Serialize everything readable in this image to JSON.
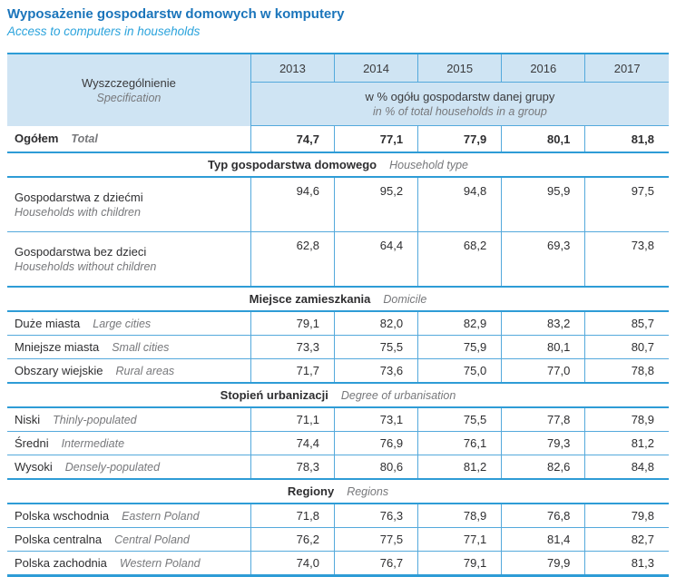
{
  "title": {
    "pl": "Wyposażenie gospodarstw domowych w komputery",
    "en": "Access to computers in households"
  },
  "table": {
    "header": {
      "spec_pl": "Wyszczególnienie",
      "spec_en": "Specification",
      "years": [
        "2013",
        "2014",
        "2015",
        "2016",
        "2017"
      ],
      "unit_pl": "w % ogółu gospodarstw danej grupy",
      "unit_en": "in % of total households in a group"
    },
    "total_row": {
      "label_pl": "Ogółem",
      "label_en": "Total",
      "values": [
        "74,7",
        "77,1",
        "77,9",
        "80,1",
        "81,8"
      ]
    },
    "sections": [
      {
        "header_pl": "Typ gospodarstwa domowego",
        "header_en": "Household type",
        "rows": [
          {
            "pl": "Gospodarstwa z dziećmi",
            "en": "Households with children",
            "two_line": true,
            "values": [
              "94,6",
              "95,2",
              "94,8",
              "95,9",
              "97,5"
            ]
          },
          {
            "pl": "Gospodarstwa bez dzieci",
            "en": "Households without children",
            "two_line": true,
            "values": [
              "62,8",
              "64,4",
              "68,2",
              "69,3",
              "73,8"
            ]
          }
        ]
      },
      {
        "header_pl": "Miejsce zamieszkania",
        "header_en": "Domicile",
        "rows": [
          {
            "pl": "Duże miasta",
            "en": "Large cities",
            "two_line": false,
            "values": [
              "79,1",
              "82,0",
              "82,9",
              "83,2",
              "85,7"
            ]
          },
          {
            "pl": "Mniejsze miasta",
            "en": "Small cities",
            "two_line": false,
            "values": [
              "73,3",
              "75,5",
              "75,9",
              "80,1",
              "80,7"
            ]
          },
          {
            "pl": "Obszary wiejskie",
            "en": "Rural areas",
            "two_line": false,
            "values": [
              "71,7",
              "73,6",
              "75,0",
              "77,0",
              "78,8"
            ]
          }
        ]
      },
      {
        "header_pl": "Stopień urbanizacji",
        "header_en": "Degree of urbanisation",
        "rows": [
          {
            "pl": "Niski",
            "en": "Thinly-populated",
            "two_line": false,
            "values": [
              "71,1",
              "73,1",
              "75,5",
              "77,8",
              "78,9"
            ]
          },
          {
            "pl": "Średni",
            "en": "Intermediate",
            "two_line": false,
            "values": [
              "74,4",
              "76,9",
              "76,1",
              "79,3",
              "81,2"
            ]
          },
          {
            "pl": "Wysoki",
            "en": "Densely-populated",
            "two_line": false,
            "values": [
              "78,3",
              "80,6",
              "81,2",
              "82,6",
              "84,8"
            ]
          }
        ]
      },
      {
        "header_pl": "Regiony",
        "header_en": "Regions",
        "rows": [
          {
            "pl": "Polska wschodnia",
            "en": "Eastern Poland",
            "two_line": false,
            "values": [
              "71,8",
              "76,3",
              "78,9",
              "76,8",
              "79,8"
            ]
          },
          {
            "pl": "Polska centralna",
            "en": "Central Poland",
            "two_line": false,
            "values": [
              "76,2",
              "77,5",
              "77,1",
              "81,4",
              "82,7"
            ]
          },
          {
            "pl": "Polska zachodnia",
            "en": "Western Poland",
            "two_line": false,
            "values": [
              "74,0",
              "76,7",
              "79,1",
              "79,9",
              "81,3"
            ]
          }
        ]
      }
    ]
  },
  "colors": {
    "title_blue": "#1b75bb",
    "subtitle_blue": "#2ba3dc",
    "header_bg": "#cfe4f3",
    "grid_light": "#54a9dc",
    "grid_strong": "#2e9cd6",
    "text_dark": "#2e2e30",
    "text_gray": "#77787b"
  },
  "chart_data": {
    "type": "table",
    "title": "Wyposażenie gospodarstw domowych w komputery (Access to computers in households)",
    "unit": "w % ogółu gospodarstw danej grupy / in % of total households in a group",
    "columns": [
      2013,
      2014,
      2015,
      2016,
      2017
    ],
    "rows": [
      {
        "group": null,
        "label": "Ogółem / Total",
        "values": [
          74.7,
          77.1,
          77.9,
          80.1,
          81.8
        ]
      },
      {
        "group": "Typ gospodarstwa domowego / Household type",
        "label": "Gospodarstwa z dziećmi / Households with children",
        "values": [
          94.6,
          95.2,
          94.8,
          95.9,
          97.5
        ]
      },
      {
        "group": "Typ gospodarstwa domowego / Household type",
        "label": "Gospodarstwa bez dzieci / Households without children",
        "values": [
          62.8,
          64.4,
          68.2,
          69.3,
          73.8
        ]
      },
      {
        "group": "Miejsce zamieszkania / Domicile",
        "label": "Duże miasta / Large cities",
        "values": [
          79.1,
          82.0,
          82.9,
          83.2,
          85.7
        ]
      },
      {
        "group": "Miejsce zamieszkania / Domicile",
        "label": "Mniejsze miasta / Small cities",
        "values": [
          73.3,
          75.5,
          75.9,
          80.1,
          80.7
        ]
      },
      {
        "group": "Miejsce zamieszkania / Domicile",
        "label": "Obszary wiejskie / Rural areas",
        "values": [
          71.7,
          73.6,
          75.0,
          77.0,
          78.8
        ]
      },
      {
        "group": "Stopień urbanizacji / Degree of urbanisation",
        "label": "Niski / Thinly-populated",
        "values": [
          71.1,
          73.1,
          75.5,
          77.8,
          78.9
        ]
      },
      {
        "group": "Stopień urbanizacji / Degree of urbanisation",
        "label": "Średni / Intermediate",
        "values": [
          74.4,
          76.9,
          76.1,
          79.3,
          81.2
        ]
      },
      {
        "group": "Stopień urbanizacji / Degree of urbanisation",
        "label": "Wysoki / Densely-populated",
        "values": [
          78.3,
          80.6,
          81.2,
          82.6,
          84.8
        ]
      },
      {
        "group": "Regiony / Regions",
        "label": "Polska wschodnia / Eastern Poland",
        "values": [
          71.8,
          76.3,
          78.9,
          76.8,
          79.8
        ]
      },
      {
        "group": "Regiony / Regions",
        "label": "Polska centralna / Central Poland",
        "values": [
          76.2,
          77.5,
          77.1,
          81.4,
          82.7
        ]
      },
      {
        "group": "Regiony / Regions",
        "label": "Polska zachodnia / Western Poland",
        "values": [
          74.0,
          76.7,
          79.1,
          79.9,
          81.3
        ]
      }
    ]
  }
}
